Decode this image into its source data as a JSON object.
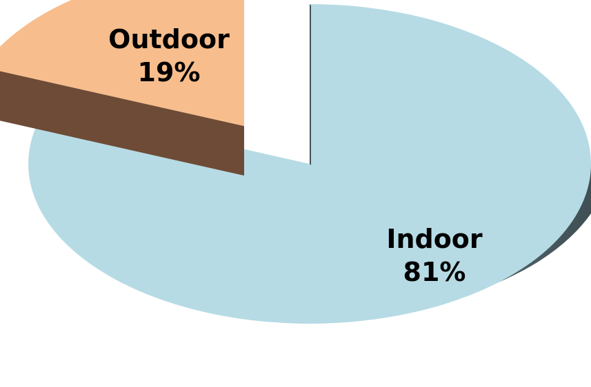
{
  "chart_data": {
    "type": "pie",
    "style": "3d-exploded",
    "title": "",
    "slices": [
      {
        "label": "Indoor",
        "value": 81,
        "value_label": "81%",
        "color": "#b6dbe5",
        "side_color_light": "#a6c3cc",
        "side_color_dark": "#3f4f54"
      },
      {
        "label": "Outdoor",
        "value": 19,
        "value_label": "19%",
        "color": "#f7bd8c",
        "side_color": "#6e4b36"
      }
    ],
    "exploded": [
      "Outdoor"
    ],
    "legend": "none"
  }
}
